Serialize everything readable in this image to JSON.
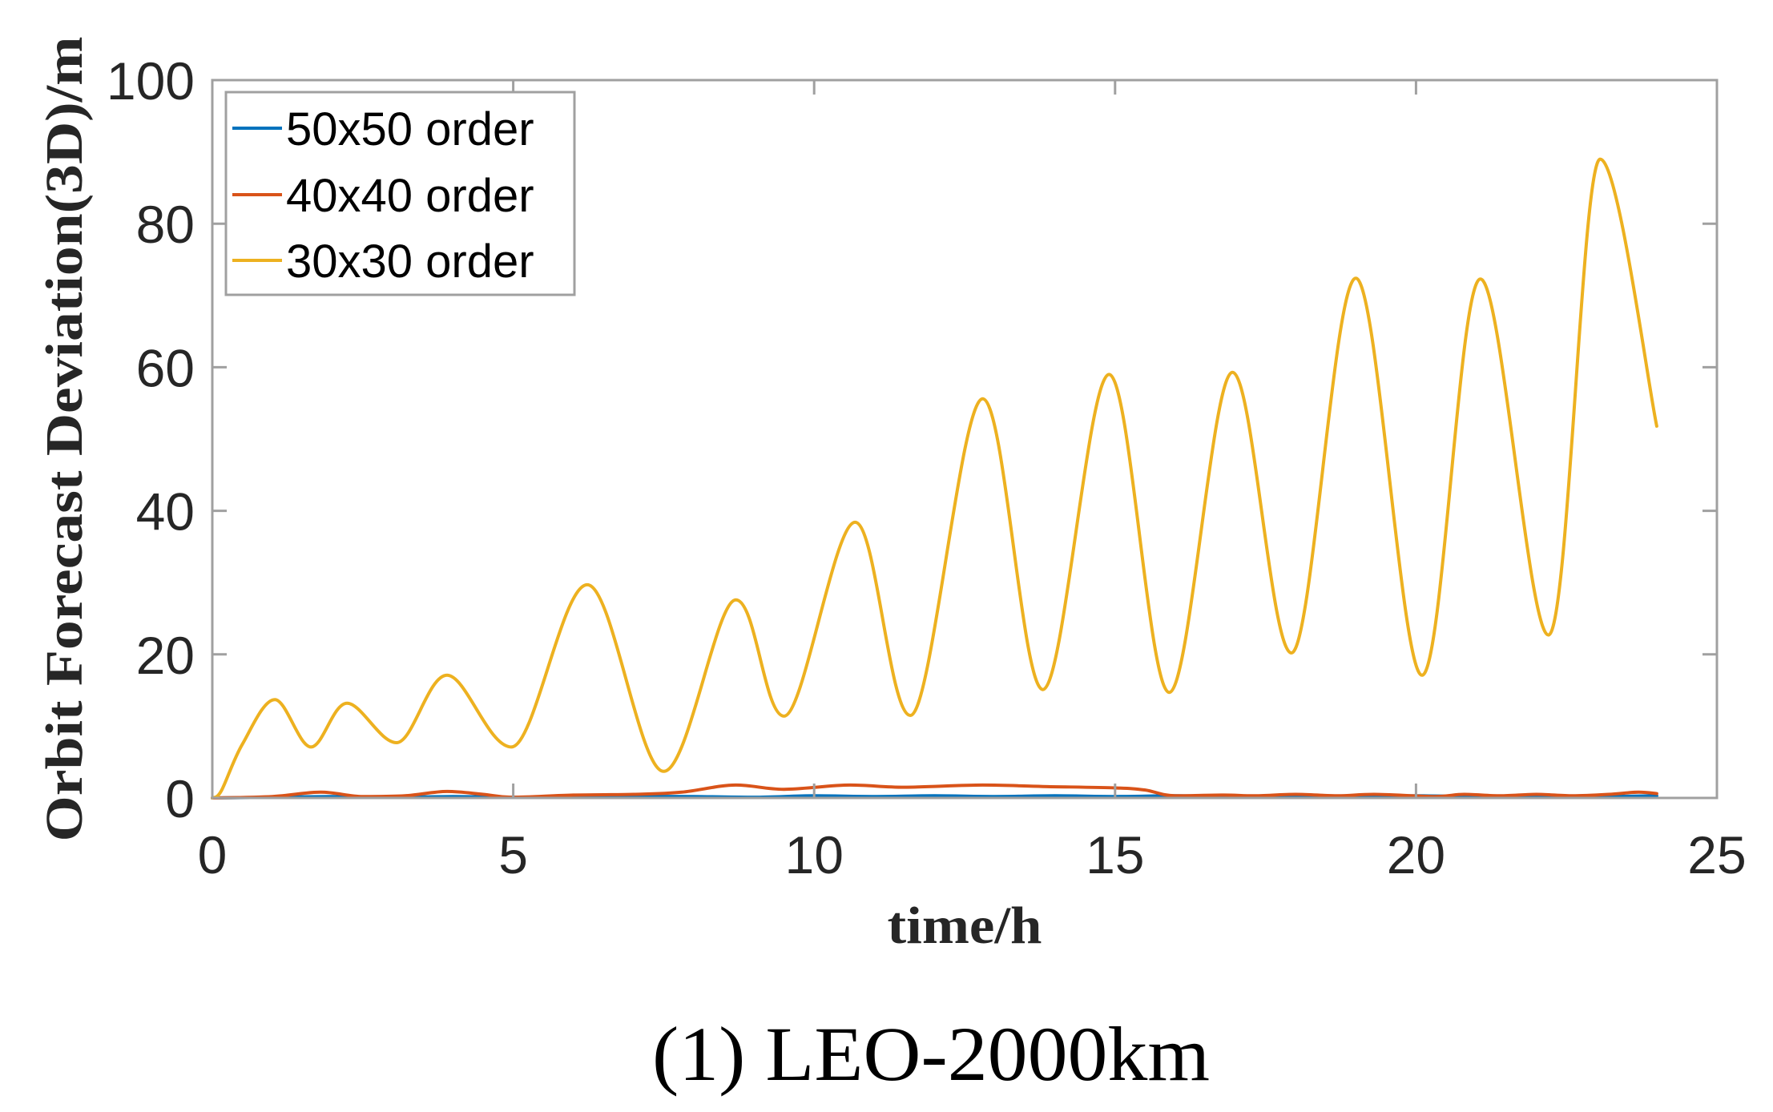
{
  "figure": {
    "caption": "(1) LEO-2000km"
  },
  "chart_data": {
    "type": "line",
    "title": "",
    "xlabel": "time/h",
    "ylabel": "Orbit Forecast Deviation(3D)/m",
    "xlim": [
      0,
      25
    ],
    "ylim": [
      0,
      100
    ],
    "xticks": [
      0,
      5,
      10,
      15,
      20,
      25
    ],
    "yticks": [
      0,
      20,
      40,
      60,
      80,
      100
    ],
    "grid": false,
    "legend_position": "upper left",
    "series": [
      {
        "name": "50x50 order",
        "color": "#0072BD",
        "x": [
          0,
          1,
          2,
          3,
          4,
          5,
          6,
          7,
          8,
          9,
          10,
          11,
          12,
          13,
          14,
          15,
          16,
          17,
          18,
          19,
          20,
          21,
          22,
          23,
          24
        ],
        "y": [
          0,
          0.1,
          0.2,
          0.1,
          0.2,
          0.1,
          0.1,
          0.2,
          0.2,
          0.1,
          0.3,
          0.2,
          0.3,
          0.2,
          0.3,
          0.2,
          0.3,
          0.2,
          0.3,
          0.2,
          0.3,
          0.2,
          0.3,
          0.2,
          0.3
        ]
      },
      {
        "name": "40x40 order",
        "color": "#D95319",
        "x": [
          0,
          1,
          1.8,
          2.5,
          3.2,
          3.9,
          4.5,
          5,
          6,
          7,
          7.8,
          8.7,
          9.5,
          10.6,
          11.5,
          12.8,
          13.8,
          15,
          15.5,
          16,
          16.8,
          17.3,
          18,
          18.7,
          19.3,
          20.3,
          20.8,
          21.4,
          22,
          22.6,
          23.2,
          23.7,
          24
        ],
        "y": [
          0,
          0.2,
          0.8,
          0.2,
          0.3,
          0.9,
          0.5,
          0.1,
          0.4,
          0.5,
          0.8,
          1.8,
          1.2,
          1.8,
          1.5,
          1.8,
          1.6,
          1.4,
          1.1,
          0.3,
          0.4,
          0.3,
          0.5,
          0.3,
          0.5,
          0.2,
          0.5,
          0.3,
          0.5,
          0.3,
          0.5,
          0.8,
          0.6
        ]
      },
      {
        "name": "30x30 order",
        "color": "#EDB120",
        "x": [
          0,
          0.15,
          0.5,
          1.04,
          1.64,
          2.24,
          3.06,
          3.9,
          4.97,
          6.23,
          7.5,
          8.7,
          9.5,
          10.68,
          11.6,
          12.8,
          13.8,
          14.9,
          15.9,
          16.95,
          17.93,
          19.0,
          20.1,
          21.07,
          22.2,
          23.06,
          24.0
        ],
        "y": [
          0,
          1.0,
          7.5,
          13.7,
          7.1,
          13.2,
          7.7,
          17.1,
          7.1,
          29.7,
          3.7,
          27.6,
          11.4,
          38.4,
          11.5,
          55.6,
          15.1,
          59.0,
          14.7,
          59.3,
          20.2,
          72.4,
          17.1,
          72.3,
          22.7,
          89.0,
          51.8
        ]
      }
    ]
  }
}
